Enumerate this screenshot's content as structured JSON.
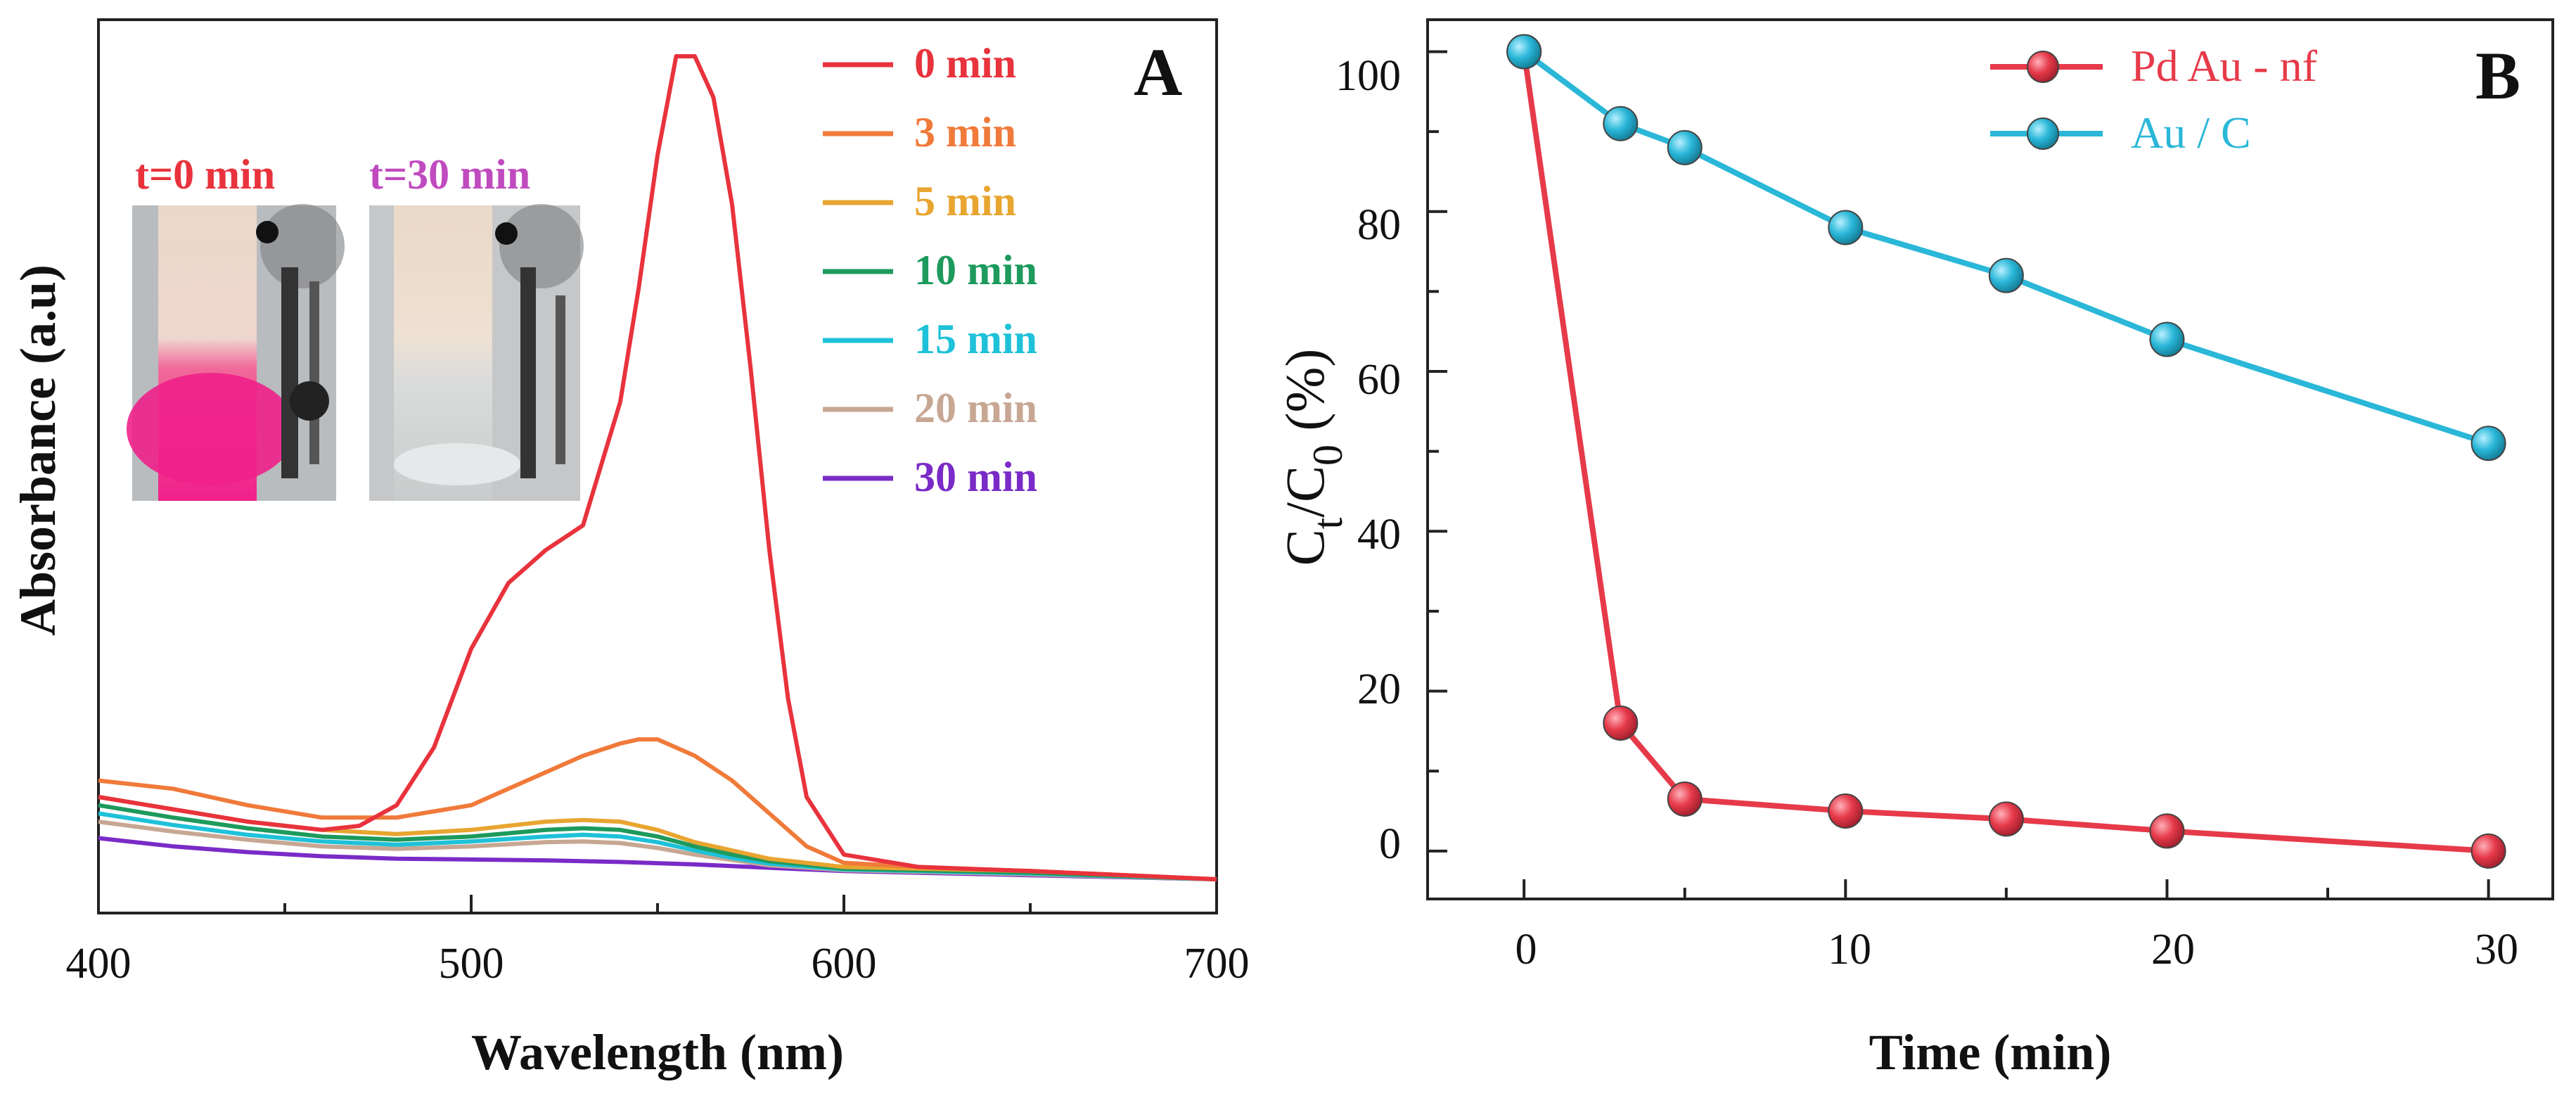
{
  "chart_data": [
    {
      "panel": "A",
      "type": "line",
      "xlabel": "Wavelength (nm)",
      "ylabel": "Absorbance (a.u)",
      "xlim": [
        400,
        700
      ],
      "x_ticks": [
        "400",
        "500",
        "600",
        "700"
      ],
      "legend_position": "top-right",
      "inset_labels": [
        "t=0 min",
        "t=30 min"
      ],
      "series": [
        {
          "name": "0 min",
          "color": "#e8333d",
          "x": [
            400,
            420,
            440,
            460,
            470,
            480,
            490,
            500,
            510,
            520,
            530,
            540,
            545,
            550,
            555,
            560,
            565,
            570,
            575,
            580,
            585,
            590,
            600,
            620,
            650,
            700
          ],
          "y": [
            0.1,
            0.085,
            0.07,
            0.06,
            0.065,
            0.09,
            0.16,
            0.28,
            0.36,
            0.4,
            0.43,
            0.58,
            0.72,
            0.88,
            1.0,
            1.0,
            0.95,
            0.82,
            0.62,
            0.4,
            0.22,
            0.1,
            0.03,
            0.015,
            0.01,
            0.0
          ]
        },
        {
          "name": "3 min",
          "color": "#f07a3a",
          "x": [
            400,
            420,
            440,
            460,
            480,
            500,
            510,
            520,
            530,
            540,
            545,
            550,
            555,
            560,
            570,
            580,
            590,
            600,
            620,
            650,
            700
          ],
          "y": [
            0.12,
            0.11,
            0.09,
            0.075,
            0.075,
            0.09,
            0.11,
            0.13,
            0.15,
            0.165,
            0.17,
            0.17,
            0.16,
            0.15,
            0.12,
            0.08,
            0.04,
            0.02,
            0.015,
            0.01,
            0.0
          ]
        },
        {
          "name": "5 min",
          "color": "#e8a530",
          "x": [
            400,
            420,
            440,
            460,
            480,
            500,
            520,
            530,
            540,
            550,
            560,
            570,
            580,
            600,
            650,
            700
          ],
          "y": [
            0.1,
            0.085,
            0.07,
            0.06,
            0.055,
            0.06,
            0.07,
            0.072,
            0.07,
            0.06,
            0.045,
            0.035,
            0.025,
            0.015,
            0.01,
            0.0
          ]
        },
        {
          "name": "10 min",
          "color": "#1d9a5c",
          "x": [
            400,
            420,
            440,
            460,
            480,
            500,
            520,
            530,
            540,
            550,
            560,
            570,
            580,
            600,
            650,
            700
          ],
          "y": [
            0.09,
            0.075,
            0.062,
            0.052,
            0.048,
            0.052,
            0.06,
            0.062,
            0.06,
            0.052,
            0.04,
            0.03,
            0.022,
            0.013,
            0.008,
            0.0
          ]
        },
        {
          "name": "15 min",
          "color": "#1ec1d8",
          "x": [
            400,
            420,
            440,
            460,
            480,
            500,
            520,
            530,
            540,
            550,
            560,
            570,
            580,
            600,
            650,
            700
          ],
          "y": [
            0.08,
            0.066,
            0.054,
            0.046,
            0.042,
            0.046,
            0.052,
            0.054,
            0.052,
            0.045,
            0.035,
            0.026,
            0.019,
            0.012,
            0.007,
            0.0
          ]
        },
        {
          "name": "20 min",
          "color": "#c7a793",
          "x": [
            400,
            420,
            440,
            460,
            480,
            500,
            520,
            530,
            540,
            550,
            560,
            580,
            600,
            650,
            700
          ],
          "y": [
            0.07,
            0.058,
            0.048,
            0.04,
            0.037,
            0.04,
            0.045,
            0.046,
            0.044,
            0.038,
            0.03,
            0.017,
            0.011,
            0.006,
            0.0
          ]
        },
        {
          "name": "30 min",
          "color": "#7a2bc7",
          "x": [
            400,
            420,
            440,
            460,
            480,
            500,
            520,
            540,
            560,
            580,
            600,
            650,
            700
          ],
          "y": [
            0.05,
            0.04,
            0.033,
            0.028,
            0.025,
            0.024,
            0.023,
            0.021,
            0.018,
            0.014,
            0.01,
            0.005,
            0.0
          ]
        }
      ]
    },
    {
      "panel": "B",
      "type": "line",
      "xlabel": "Time (min)",
      "ylabel": "Ct/C0 (%)",
      "ylabel_parts": {
        "c1": "C",
        "s1": "t",
        "slash": "/",
        "c2": "C",
        "s2": "0",
        "unit": " (%)"
      },
      "xlim": [
        -3,
        32
      ],
      "ylim": [
        -6,
        104
      ],
      "x_ticks": [
        "0",
        "10",
        "20",
        "30"
      ],
      "y_ticks": [
        "0",
        "20",
        "40",
        "60",
        "80",
        "100"
      ],
      "legend_position": "top-right",
      "series": [
        {
          "name": "Pd Au - nf",
          "color": "#e63a4a",
          "x": [
            0,
            3,
            5,
            10,
            15,
            20,
            30
          ],
          "y": [
            100,
            16,
            6.5,
            5,
            4,
            2.5,
            0
          ]
        },
        {
          "name": "Au / C",
          "color": "#2ab7d8",
          "x": [
            0,
            3,
            5,
            10,
            15,
            20,
            30
          ],
          "y": [
            100,
            91,
            88,
            78,
            72,
            64,
            51
          ]
        }
      ]
    }
  ],
  "colors": {
    "inset_label_0": "#e8333d",
    "inset_label_30": "#c04bbf",
    "legend_b_pdau": "#e63a4a",
    "legend_b_auc": "#2ab7d8"
  }
}
